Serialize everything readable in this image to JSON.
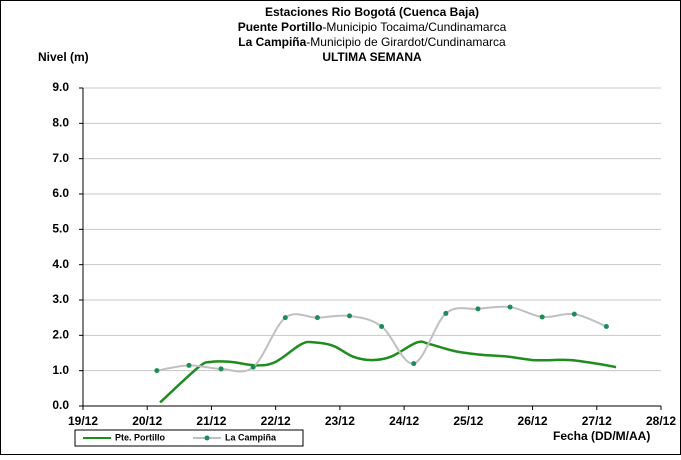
{
  "chart_data": {
    "type": "line",
    "title": "Estaciones Rio Bogotá (Cuenca Baja)",
    "stations": [
      {
        "name": "Puente Portillo",
        "place": "-Municipio Tocaima/Cundinamarca"
      },
      {
        "name": "La Campiña",
        "place": "-Municipio de Girardot/Cundinamarca"
      }
    ],
    "period": "ULTIMA SEMANA",
    "y_label": "Nivel (m)",
    "x_label": "Fecha (DD/M/AA)",
    "xlim": [
      19,
      28
    ],
    "xticks": [
      {
        "value": 19,
        "label": "19/12"
      },
      {
        "value": 20,
        "label": "20/12"
      },
      {
        "value": 21,
        "label": "21/12"
      },
      {
        "value": 22,
        "label": "22/12"
      },
      {
        "value": 23,
        "label": "23/12"
      },
      {
        "value": 24,
        "label": "24/12"
      },
      {
        "value": 25,
        "label": "25/12"
      },
      {
        "value": 26,
        "label": "26/12"
      },
      {
        "value": 27,
        "label": "27/12"
      },
      {
        "value": 28,
        "label": "28/12"
      }
    ],
    "ylim": [
      0,
      9
    ],
    "yticks": [
      {
        "value": 0,
        "label": "0.0"
      },
      {
        "value": 1,
        "label": "1.0"
      },
      {
        "value": 2,
        "label": "2.0"
      },
      {
        "value": 3,
        "label": "3.0"
      },
      {
        "value": 4,
        "label": "4.0"
      },
      {
        "value": 5,
        "label": "5.0"
      },
      {
        "value": 6,
        "label": "6.0"
      },
      {
        "value": 7,
        "label": "7.0"
      },
      {
        "value": 8,
        "label": "8.0"
      },
      {
        "value": 9,
        "label": "9.0"
      }
    ],
    "grid": true,
    "series": [
      {
        "name": "Pte. Portillo",
        "color": "#1e8c1e",
        "markers": false,
        "x": [
          20.2,
          20.8,
          21.0,
          21.3,
          21.7,
          22.0,
          22.4,
          22.6,
          22.9,
          23.2,
          23.5,
          23.8,
          24.2,
          24.4,
          24.8,
          25.2,
          25.6,
          26.0,
          26.3,
          26.6,
          27.0,
          27.3
        ],
        "values": [
          0.1,
          1.1,
          1.25,
          1.25,
          1.15,
          1.25,
          1.75,
          1.8,
          1.7,
          1.4,
          1.3,
          1.4,
          1.8,
          1.75,
          1.55,
          1.45,
          1.4,
          1.3,
          1.3,
          1.3,
          1.2,
          1.1
        ]
      },
      {
        "name": "La Campiña",
        "color": "#c0c0c0",
        "marker_color": "#1e8c5a",
        "markers": true,
        "x": [
          20.15,
          20.65,
          21.15,
          21.65,
          22.15,
          22.65,
          23.15,
          23.65,
          24.15,
          24.65,
          25.15,
          25.65,
          26.15,
          26.65,
          27.15
        ],
        "values": [
          1.0,
          1.15,
          1.05,
          1.1,
          2.5,
          2.5,
          2.55,
          2.25,
          1.2,
          2.62,
          2.75,
          2.8,
          2.52,
          2.6,
          2.25
        ]
      }
    ]
  }
}
